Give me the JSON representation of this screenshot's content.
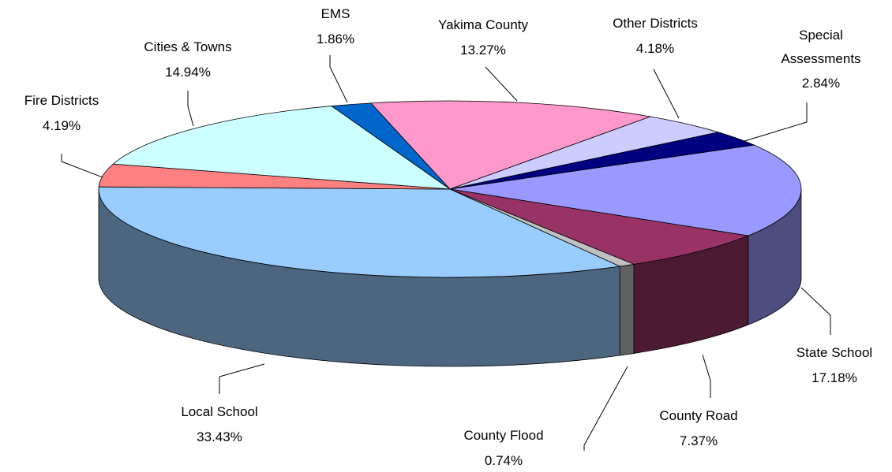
{
  "chart_data": {
    "type": "pie",
    "categories": [
      "Yakima County",
      "Other Districts",
      "Special Assessments",
      "State School",
      "County Road",
      "County Flood",
      "Local School",
      "Fire Districts",
      "Cities & Towns",
      "EMS"
    ],
    "values": [
      13.27,
      4.18,
      2.84,
      17.18,
      7.37,
      0.74,
      33.43,
      4.19,
      14.94,
      1.86
    ],
    "value_labels": [
      "13.27%",
      "4.18%",
      "2.84%",
      "17.18%",
      "7.37%",
      "0.74%",
      "33.43%",
      "4.19%",
      "14.94%",
      "1.86%"
    ],
    "colors": [
      "#ff99cc",
      "#ccccff",
      "#000080",
      "#9999ff",
      "#993366",
      "#c0c0c0",
      "#99ccff",
      "#ff8080",
      "#ccffff",
      "#0066cc"
    ]
  }
}
